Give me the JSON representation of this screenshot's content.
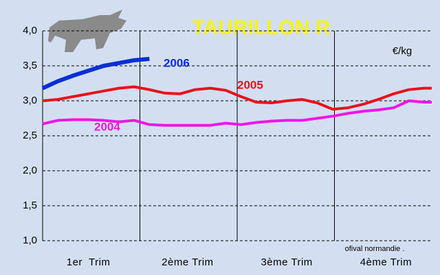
{
  "chart_data": {
    "type": "line",
    "title": "TAURILLON R",
    "unit_label": "€/kg",
    "source": "ofival normandie .",
    "x": [
      1,
      3,
      5,
      7,
      9,
      11,
      13,
      15,
      17,
      19,
      21,
      23,
      25,
      27,
      29,
      31,
      33,
      35,
      37,
      39,
      41,
      43,
      45,
      47,
      49,
      51,
      52
    ],
    "xlim": [
      1,
      52
    ],
    "xticks": [
      {
        "value": 7,
        "label": "1er  Trim"
      },
      {
        "value": 20,
        "label": "2ème Trim"
      },
      {
        "value": 33,
        "label": "3ème Trim"
      },
      {
        "value": 46,
        "label": "4ème Trim"
      }
    ],
    "ylim": [
      1.0,
      4.0
    ],
    "yticks": [
      {
        "value": 1.0,
        "label": "1,0"
      },
      {
        "value": 1.5,
        "label": "1,5"
      },
      {
        "value": 2.0,
        "label": "2,0"
      },
      {
        "value": 2.5,
        "label": "2,5"
      },
      {
        "value": 3.0,
        "label": "3,0"
      },
      {
        "value": 3.5,
        "label": "3,5"
      },
      {
        "value": 4.0,
        "label": "4,0"
      }
    ],
    "grid": true,
    "series": [
      {
        "name": "2006",
        "color": "#0a2fd6",
        "values": [
          3.18,
          3.28,
          3.36,
          3.43,
          3.5,
          3.54,
          3.58,
          3.6,
          null,
          null,
          null,
          null,
          null,
          null,
          null,
          null,
          null,
          null,
          null,
          null,
          null,
          null,
          null,
          null,
          null,
          null,
          null
        ]
      },
      {
        "name": "2005",
        "color": "#e8121b",
        "values": [
          3.0,
          3.02,
          3.06,
          3.1,
          3.14,
          3.18,
          3.2,
          3.16,
          3.11,
          3.1,
          3.16,
          3.18,
          3.15,
          3.06,
          2.98,
          2.97,
          3.0,
          3.02,
          2.97,
          2.88,
          2.9,
          2.95,
          3.02,
          3.1,
          3.16,
          3.18,
          3.18
        ]
      },
      {
        "name": "2004",
        "color": "#ee16e6",
        "values": [
          2.67,
          2.72,
          2.73,
          2.73,
          2.72,
          2.7,
          2.72,
          2.66,
          2.65,
          2.65,
          2.65,
          2.65,
          2.68,
          2.66,
          2.69,
          2.71,
          2.72,
          2.72,
          2.75,
          2.78,
          2.82,
          2.85,
          2.87,
          2.9,
          3.0,
          2.98,
          2.98
        ]
      }
    ]
  }
}
